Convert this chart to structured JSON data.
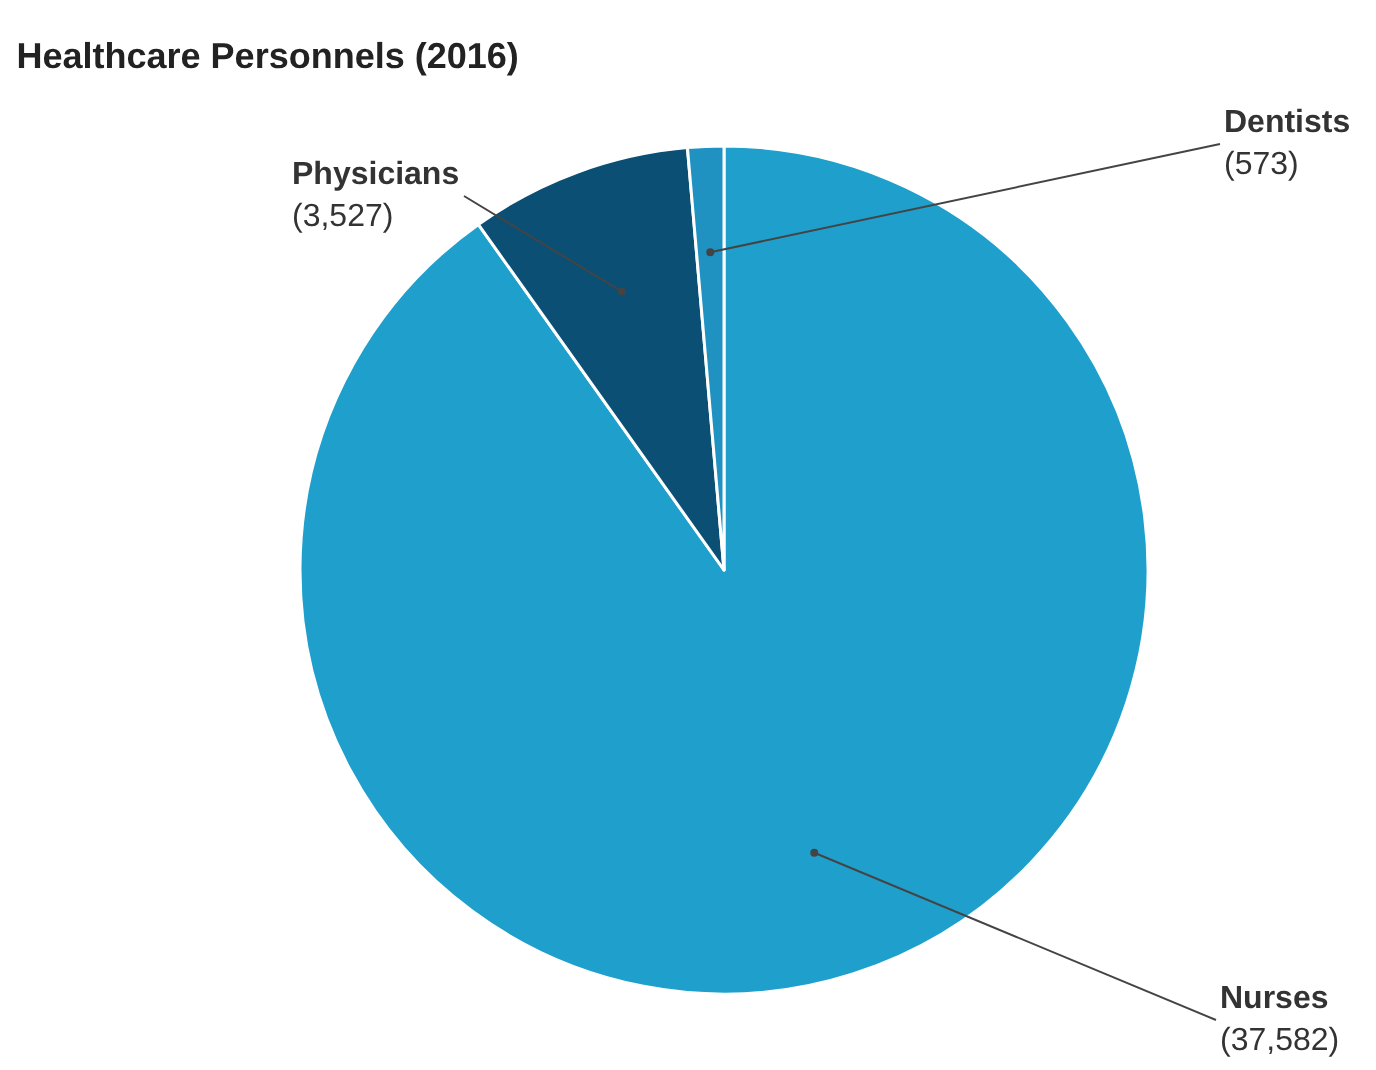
{
  "chart_data": {
    "type": "pie",
    "title": "Healthcare Personnels (2016)",
    "categories": [
      "Nurses",
      "Physicians",
      "Dentists"
    ],
    "values": [
      37582,
      3527,
      573
    ],
    "value_labels": [
      "(37,582)",
      "(3,527)",
      "(573)"
    ],
    "colors": [
      "#1fa0cc",
      "#0b4f75",
      "#1f92c2"
    ],
    "legend": false
  }
}
